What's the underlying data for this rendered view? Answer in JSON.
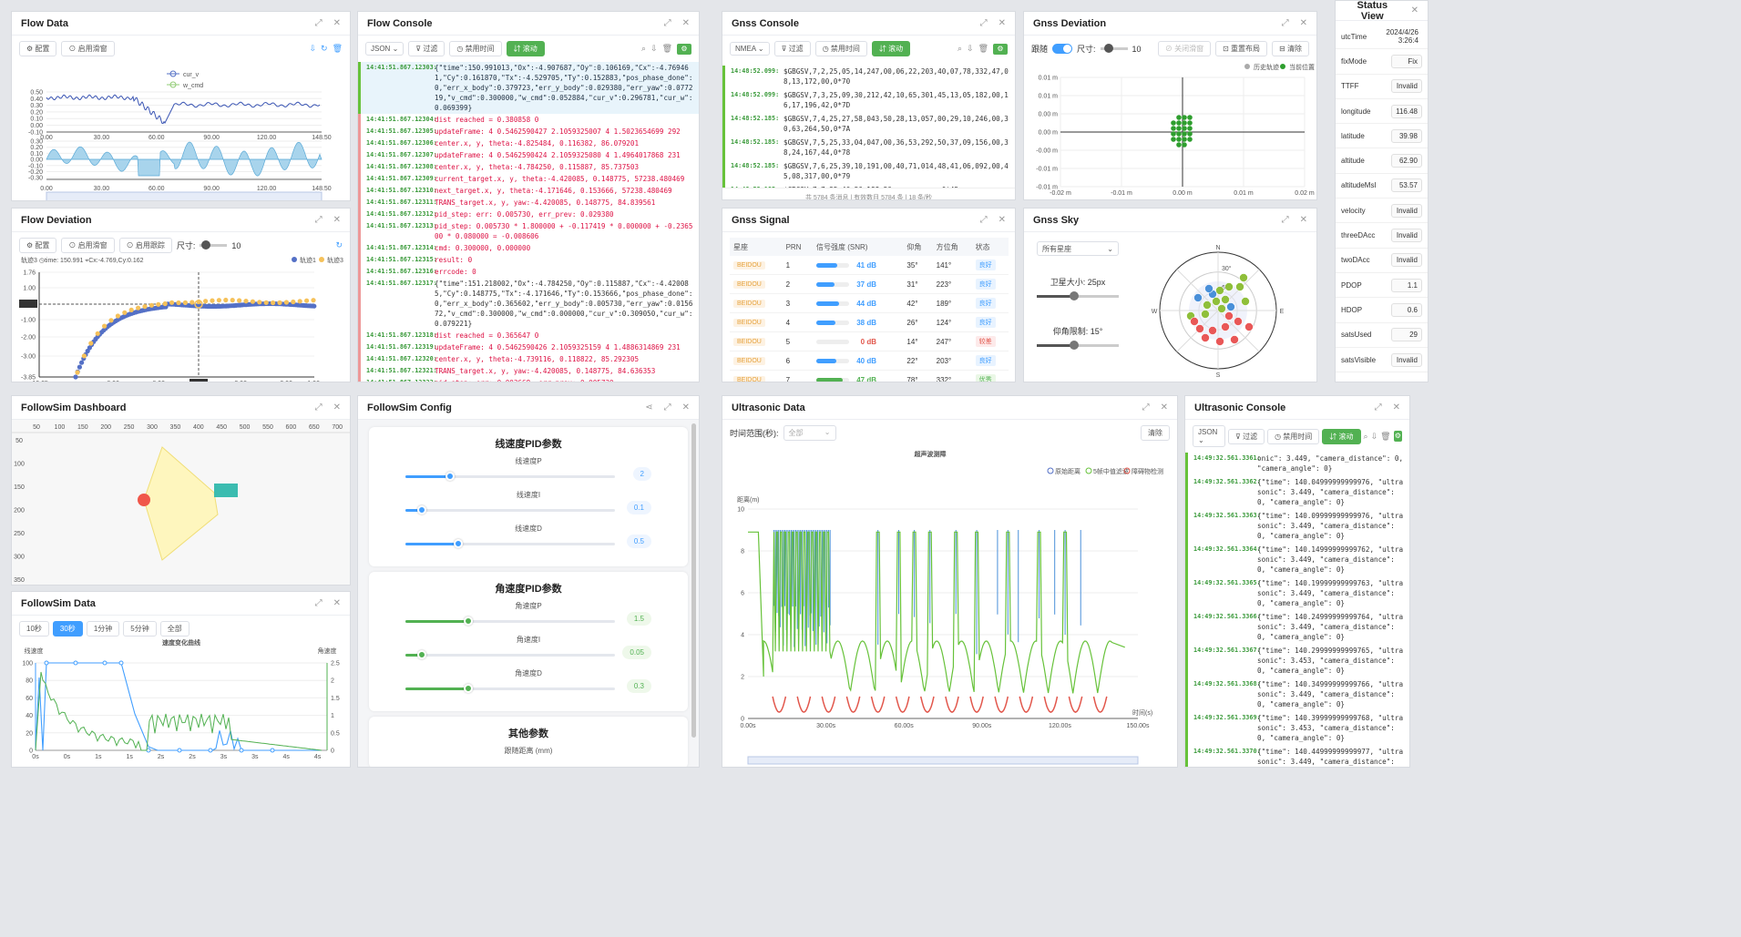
{
  "flow_data": {
    "title": "Flow Data",
    "btn_config": "⚙ 配置",
    "btn_smooth": "⊙ 启用滑窗",
    "legend": [
      "cur_v",
      "w_cmd"
    ],
    "top_y_ticks": [
      "0.50",
      "0.40",
      "0.30",
      "0.20",
      "0.10",
      "0.00",
      "-0.10"
    ],
    "bottom_y_ticks": [
      "0.30",
      "0.20",
      "0.10",
      "0.00",
      "-0.10",
      "-0.20",
      "-0.30"
    ],
    "x_ticks": [
      "0.00",
      "30.00",
      "60.00",
      "90.00",
      "120.00",
      "148.50"
    ]
  },
  "flow_console": {
    "title": "Flow Console",
    "format": "JSON",
    "btn_filter": "⊽ 过滤",
    "btn_time": "◷ 禁用时间",
    "btn_scroll": "⇵ 滚动",
    "lines": [
      {
        "t": "14:41:51.867.12303:",
        "x": "{\"time\":150.991013,\"Ox\":-4.907687,\"Oy\":0.106169,\"Cx\":-4.769461,\"Cy\":0.161870,\"Tx\":-4.529705,\"Ty\":0.152883,\"pos_phase_done\":0,\"err_x_body\":0.379723,\"err_y_body\":0.029380,\"err_yaw\":0.077219,\"v_cmd\":0.300000,\"w_cmd\":0.052884,\"cur_v\":0.296781,\"cur_w\":0.069399}",
        "hl": true
      },
      {
        "t": "14:41:51.867.12304:",
        "x": "dist reached = 0.380858 0"
      },
      {
        "t": "14:41:51.867.12305:",
        "x": "updateFrame: 4 0.5462590427 2.1059325007 4 1.5023654699 292"
      },
      {
        "t": "14:41:51.867.12306:",
        "x": "center.x, y, theta:-4.825484, 0.116382, 86.079201"
      },
      {
        "t": "14:41:51.867.12307:",
        "x": "updateFrame: 4 0.5462590424 2.1059325080 4 1.4964017868 231"
      },
      {
        "t": "14:41:51.867.12308:",
        "x": "center.x, y, theta:-4.784250, 0.115887, 85.737503"
      },
      {
        "t": "14:41:51.867.12309:",
        "x": "current_target.x, y, theta:-4.420085, 0.148775, 57238.480469"
      },
      {
        "t": "14:41:51.867.12310:",
        "x": "next_target.x, y, theta:-4.171646, 0.153666, 57238.480469"
      },
      {
        "t": "14:41:51.867.12311:",
        "x": "TRANS_target.x, y, yaw:-4.420085, 0.148775, 84.839561"
      },
      {
        "t": "14:41:51.867.12312:",
        "x": "pid_step: err: 0.005730, err_prev: 0.029380"
      },
      {
        "t": "14:41:51.867.12313:",
        "x": "pid_step: 0.005730 * 1.800000 + -0.117419 * 0.000000 + -0.236500 * 0.080000 = -0.008606"
      },
      {
        "t": "14:41:51.867.12314:",
        "x": "cmd: 0.300000, 0.000000"
      },
      {
        "t": "14:41:51.867.12315:",
        "x": "result: 0"
      },
      {
        "t": "14:41:51.867.12316:",
        "x": "errcode: 0"
      },
      {
        "t": "14:41:51.867.12317:",
        "x": "{\"time\":151.218002,\"Ox\":-4.784250,\"Oy\":0.115887,\"Cx\":-4.420085,\"Cy\":0.148775,\"Tx\":-4.171646,\"Ty\":0.153666,\"pos_phase_done\":0,\"err_x_body\":0.365602,\"err_y_body\":0.005730,\"err_yaw\":0.015672,\"v_cmd\":0.300000,\"w_cmd\":0.000000,\"cur_v\":0.309050,\"cur_w\":0.079221}",
        "black": true
      },
      {
        "t": "14:41:51.867.12318:",
        "x": "dist reached = 0.365647 0"
      },
      {
        "t": "14:41:51.867.12319:",
        "x": "updateFrame: 4 0.5462590426 2.1059325159 4 1.4886314869 231"
      },
      {
        "t": "14:41:51.867.12320:",
        "x": "center.x, y, theta:-4.739116, 0.118822, 85.292305"
      },
      {
        "t": "14:41:51.867.12321:",
        "x": "TRANS_target.x, y, yaw:-4.420085, 0.148775, 84.636353"
      },
      {
        "t": "14:41:51.867.12322:",
        "x": "pid_step: err: 0.003668, err_prev: 0.005730"
      },
      {
        "t": "",
        "x": "pid_step: 0.003668 * 1.800000 + -0.117052 * 0.000000 + -0.020619 *"
      }
    ]
  },
  "gnss_console": {
    "title": "Gnss Console",
    "format": "NMEA",
    "btn_filter": "⊽ 过滤",
    "btn_time": "◷ 禁用时间",
    "btn_scroll": "⇵ 滚动",
    "lines": [
      {
        "t": "14:48:52.099:",
        "x": "$GBGSV,7,2,25,05,14,247,00,06,22,203,40,07,78,332,47,08,13,172,00,0*70"
      },
      {
        "t": "14:48:52.099:",
        "x": "$GBGSV,7,3,25,09,30,212,42,10,65,301,45,13,05,182,00,16,17,196,42,0*7D"
      },
      {
        "t": "14:48:52.185:",
        "x": "$GBGSV,7,4,25,27,58,043,50,28,13,057,00,29,10,246,00,30,63,264,50,0*7A"
      },
      {
        "t": "14:48:52.185:",
        "x": "$GBGSV,7,5,25,33,04,047,00,36,53,292,50,37,09,156,00,38,24,167,44,0*78"
      },
      {
        "t": "14:48:52.185:",
        "x": "$GBGSV,7,6,25,39,10,191,00,40,71,014,48,41,06,092,00,45,08,317,00,0*79"
      },
      {
        "t": "14:48:52.185:",
        "x": "$GBGSV,7,7,25,46,56,188,50,,,,,,,,,,,,0*45"
      }
    ],
    "footer": "共 5784 条消息 | 有效数目 5784 条 | 18 条/秒"
  },
  "gnss_deviation": {
    "title": "Gnss Deviation",
    "follow_label": "跟随",
    "size_label": "尺寸:",
    "size_value": "10",
    "btn_close": "⊘ 关闭滑窗",
    "btn_reset": "⊡ 重置布局",
    "btn_clear": "⊟ 清除",
    "legend": [
      "历史轨迹",
      "当前位置"
    ],
    "y_ticks": [
      "0.01 m",
      "0.01 m",
      "0.00 m",
      "0.00 m",
      "-0.00 m",
      "-0.01 m",
      "-0.01 m"
    ],
    "x_ticks": [
      "-0.02 m",
      "-0.01 m",
      "0.00 m",
      "0.01 m",
      "0.02 m"
    ]
  },
  "status_view": {
    "title": "Status View",
    "rows": [
      {
        "k": "utcTime",
        "v": "2024/4/26 3:26:4"
      },
      {
        "k": "fixMode",
        "v": "Fix"
      },
      {
        "k": "TTFF",
        "v": "Invalid"
      },
      {
        "k": "longitude",
        "v": "116.48"
      },
      {
        "k": "latitude",
        "v": "39.98"
      },
      {
        "k": "altitude",
        "v": "62.90"
      },
      {
        "k": "altitudeMsl",
        "v": "53.57"
      },
      {
        "k": "velocity",
        "v": "Invalid"
      },
      {
        "k": "threeDAcc",
        "v": "Invalid"
      },
      {
        "k": "twoDAcc",
        "v": "Invalid"
      },
      {
        "k": "PDOP",
        "v": "1.1"
      },
      {
        "k": "HDOP",
        "v": "0.6"
      },
      {
        "k": "satsUsed",
        "v": "29"
      },
      {
        "k": "satsVisible",
        "v": "Invalid"
      }
    ]
  },
  "flow_deviation": {
    "title": "Flow Deviation",
    "btn_config": "⚙ 配置",
    "btn_smooth": "⊙ 启用滑窗",
    "btn_follow": "⊙ 启用跟踪",
    "size_label": "尺寸:",
    "size_value": "10",
    "info": "轨迹3 ◷time: 150.991 ⌖Cx:-4.769,Cy:0.162",
    "legend": [
      "轨迹1",
      "轨迹3"
    ],
    "y_ticks": [
      "1.76",
      "1.00",
      "0.10",
      "-1.00",
      "-2.00",
      "-3.00",
      "-3.85"
    ],
    "x_ticks": [
      "-10.05",
      "-8.00",
      "-6.00",
      "-4.70",
      "-3.00",
      "-2.00",
      "-1.00",
      "1.53"
    ]
  },
  "gnss_signal": {
    "title": "Gnss Signal",
    "headers": [
      "星座",
      "PRN",
      "信号强度 (SNR)",
      "仰角",
      "方位角",
      "状态"
    ],
    "rows": [
      {
        "c": "BEIDOU",
        "prn": "1",
        "snr": "41 dB",
        "el": "35°",
        "az": "141°",
        "st": "良好",
        "lvl": 0.65
      },
      {
        "c": "BEIDOU",
        "prn": "2",
        "snr": "37 dB",
        "el": "31°",
        "az": "223°",
        "st": "良好",
        "lvl": 0.55
      },
      {
        "c": "BEIDOU",
        "prn": "3",
        "snr": "44 dB",
        "el": "42°",
        "az": "189°",
        "st": "良好",
        "lvl": 0.7
      },
      {
        "c": "BEIDOU",
        "prn": "4",
        "snr": "38 dB",
        "el": "26°",
        "az": "124°",
        "st": "良好",
        "lvl": 0.58
      },
      {
        "c": "BEIDOU",
        "prn": "5",
        "snr": "0 dB",
        "el": "14°",
        "az": "247°",
        "st": "较差",
        "lvl": 0
      },
      {
        "c": "BEIDOU",
        "prn": "6",
        "snr": "40 dB",
        "el": "22°",
        "az": "203°",
        "st": "良好",
        "lvl": 0.62
      },
      {
        "c": "BEIDOU",
        "prn": "7",
        "snr": "47 dB",
        "el": "78°",
        "az": "332°",
        "st": "优秀",
        "lvl": 0.8
      }
    ]
  },
  "gnss_sky": {
    "title": "Gnss Sky",
    "filter": "所有星座",
    "sat_size_label": "卫星大小: 25px",
    "elev_label": "仰角限制: 15°",
    "dirs": [
      "N",
      "E",
      "S",
      "W"
    ],
    "rings": [
      "60°",
      "30°"
    ]
  },
  "followsim_dash": {
    "title": "FollowSim Dashboard",
    "x_ticks": [
      "50",
      "100",
      "150",
      "200",
      "250",
      "300",
      "350",
      "400",
      "450",
      "500",
      "550",
      "600",
      "650",
      "700"
    ],
    "y_ticks": [
      "50",
      "100",
      "150",
      "200",
      "250",
      "300",
      "350"
    ]
  },
  "followsim_data": {
    "title": "FollowSim Data",
    "ranges": [
      "10秒",
      "30秒",
      "1分钟",
      "5分钟",
      "全部"
    ],
    "active": 1,
    "chart_title": "速度变化曲线",
    "left_axis": "线速度",
    "right_axis": "角速度",
    "left_ticks": [
      "100",
      "80",
      "60",
      "40",
      "20",
      "0"
    ],
    "right_ticks": [
      "2.5",
      "2",
      "1.5",
      "1",
      "0.5",
      "0"
    ],
    "x_ticks": [
      "0s",
      "0s",
      "1s",
      "1s",
      "2s",
      "2s",
      "3s",
      "3s",
      "4s",
      "4s"
    ]
  },
  "followsim_config": {
    "title": "FollowSim Config",
    "sections": [
      {
        "title": "线速度PID参数",
        "items": [
          {
            "label": "线速度P",
            "value": "2",
            "pos": 0.22
          },
          {
            "label": "线速度I",
            "value": "0.1",
            "pos": 0.08
          },
          {
            "label": "线速度D",
            "value": "0.5",
            "pos": 0.26
          }
        ]
      },
      {
        "title": "角速度PID参数",
        "items": [
          {
            "label": "角速度P",
            "value": "1.5",
            "pos": 0.31
          },
          {
            "label": "角速度I",
            "value": "0.05",
            "pos": 0.08
          },
          {
            "label": "角速度D",
            "value": "0.3",
            "pos": 0.31
          }
        ]
      },
      {
        "title": "其他参数",
        "items": [
          {
            "label": "跟随距离 (mm)",
            "value": "",
            "pos": 0
          }
        ]
      }
    ]
  },
  "ultra_data": {
    "title": "Ultrasonic Data",
    "range_label": "时间范围(秒):",
    "range_value": "全部",
    "btn_clear": "清除",
    "chart_title": "超声波测障",
    "legend": [
      "原始距离",
      "5帧中值滤波",
      "障碍物检测"
    ],
    "y_axis": "距离(m)",
    "y_ticks": [
      "10",
      "8",
      "6",
      "4",
      "2",
      "0"
    ],
    "x_axis": "时间(s)",
    "x_ticks": [
      "0.00s",
      "30.00s",
      "60.00s",
      "90.00s",
      "120.00s",
      "150.00s"
    ]
  },
  "ultra_console": {
    "title": "Ultrasonic Console",
    "format": "JSON",
    "btn_filter": "⊽ 过滤",
    "btn_time": "◷ 禁用时间",
    "btn_scroll": "⇵ 滚动",
    "lines": [
      {
        "t": "14:49:32.561.3361:",
        "x": "onic\": 3.449, \"camera_distance\": 0, \"camera_angle\": 0}"
      },
      {
        "t": "14:49:32.561.3362:",
        "x": "{\"time\": 140.04999999999976, \"ultrasonic\": 3.449, \"camera_distance\": 0, \"camera_angle\": 0}"
      },
      {
        "t": "14:49:32.561.3363:",
        "x": "{\"time\": 140.09999999999976, \"ultrasonic\": 3.449, \"camera_distance\": 0, \"camera_angle\": 0}"
      },
      {
        "t": "14:49:32.561.3364:",
        "x": "{\"time\": 140.14999999999762, \"ultrasonic\": 3.449, \"camera_distance\": 0, \"camera_angle\": 0}"
      },
      {
        "t": "14:49:32.561.3365:",
        "x": "{\"time\": 140.19999999999763, \"ultrasonic\": 3.449, \"camera_distance\": 0, \"camera_angle\": 0}"
      },
      {
        "t": "14:49:32.561.3366:",
        "x": "{\"time\": 140.24999999999764, \"ultrasonic\": 3.449, \"camera_distance\": 0, \"camera_angle\": 0}"
      },
      {
        "t": "14:49:32.561.3367:",
        "x": "{\"time\": 140.29999999999765, \"ultrasonic\": 3.453, \"camera_distance\": 0, \"camera_angle\": 0}"
      },
      {
        "t": "14:49:32.561.3368:",
        "x": "{\"time\": 140.34999999999766, \"ultrasonic\": 3.449, \"camera_distance\": 0, \"camera_angle\": 0}"
      },
      {
        "t": "14:49:32.561.3369:",
        "x": "{\"time\": 140.39999999999768, \"ultrasonic\": 3.453, \"camera_distance\": 0, \"camera_angle\": 0}"
      },
      {
        "t": "14:49:32.561.3370:",
        "x": "{\"time\": 140.44999999999977, \"ultrasonic\": 3.449, \"camera_distance\": 0, \"camera_angle\": 0}"
      },
      {
        "t": "14:49:32.561.3371:",
        "x": "{\"time\": 140.49999999999977, \"ultrasonic\": 3.449, \"camera_distance\": 0, \"camera_angle\": 0}"
      }
    ]
  },
  "colors": {
    "green": "#52b152",
    "blue": "#409eff",
    "series_blue": "#5470c6",
    "series_yellow": "#f5c15a",
    "red": "#e2574c"
  },
  "icons": {
    "panel": [
      "expand-icon",
      "close-icon"
    ],
    "tool": [
      "search-icon",
      "download-icon",
      "trash-icon"
    ]
  }
}
